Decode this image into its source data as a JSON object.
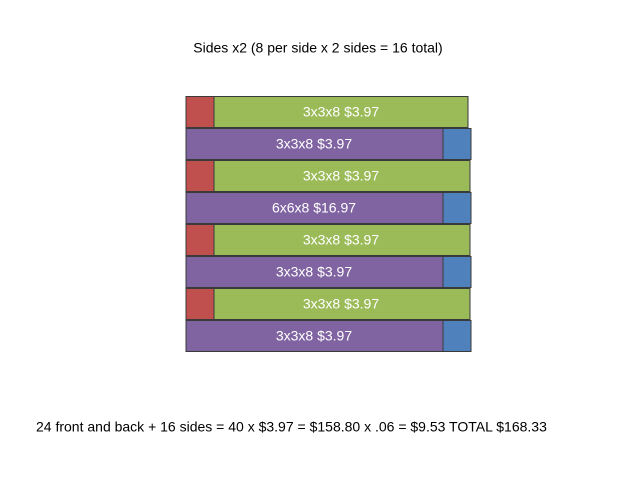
{
  "title": "Sides x2 (8 per side x 2 sides = 16 total)",
  "rows": [
    {
      "label": "3x3x8 $3.97"
    },
    {
      "label": "3x3x8 $3.97"
    },
    {
      "label": "3x3x8 $3.97"
    },
    {
      "label": "6x6x8 $16.97"
    },
    {
      "label": "3x3x8 $3.97"
    },
    {
      "label": "3x3x8 $3.97"
    },
    {
      "label": "3x3x8 $3.97"
    },
    {
      "label": "3x3x8 $3.97"
    }
  ],
  "footer": "24 front and back + 16 sides = 40 x $3.97 = $158.80 x .06 = $9.53  TOTAL $168.33"
}
